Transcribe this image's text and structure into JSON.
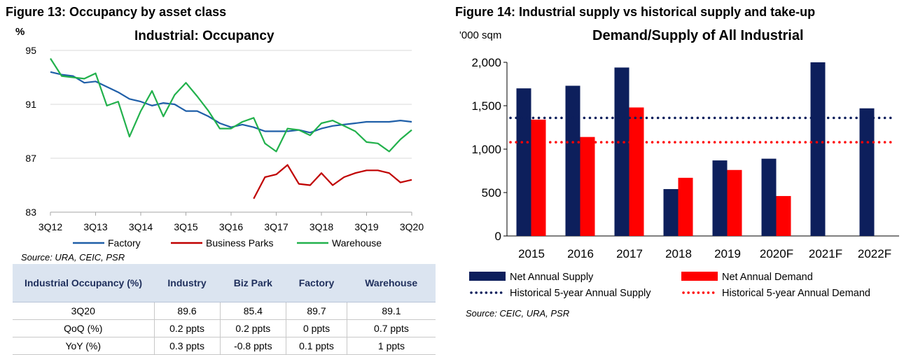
{
  "left": {
    "figure_title": "Figure 13: Occupancy by asset class",
    "unit": "%",
    "source": "Source: URA, CEIC, PSR"
  },
  "right": {
    "figure_title": "Figure 14: Industrial supply vs historical supply and take-up",
    "unit": "'000 sqm",
    "source": "Source: CEIC, URA, PSR"
  },
  "table": {
    "headers": [
      "Industrial Occupancy (%)",
      "Industry",
      "Biz Park",
      "Factory",
      "Warehouse"
    ],
    "rows": [
      [
        "3Q20",
        "89.6",
        "85.4",
        "89.7",
        "89.1"
      ],
      [
        "QoQ (%)",
        "0.2 ppts",
        "0.2 ppts",
        "0 ppts",
        "0.7 ppts"
      ],
      [
        "YoY (%)",
        "0.3 ppts",
        "-0.8 ppts",
        "0.1 ppts",
        "1 ppts"
      ]
    ]
  },
  "chart_data": [
    {
      "type": "line",
      "title": "Industrial: Occupancy",
      "xlabel": "",
      "ylabel": "%",
      "ylim": [
        83,
        95
      ],
      "yticks": [
        83,
        87,
        91,
        95
      ],
      "xtick_labels": [
        "3Q12",
        "3Q13",
        "3Q14",
        "3Q15",
        "3Q16",
        "3Q17",
        "3Q18",
        "3Q19",
        "3Q20"
      ],
      "x": [
        "3Q12",
        "4Q12",
        "1Q13",
        "2Q13",
        "3Q13",
        "4Q13",
        "1Q14",
        "2Q14",
        "3Q14",
        "4Q14",
        "1Q15",
        "2Q15",
        "3Q15",
        "4Q15",
        "1Q16",
        "2Q16",
        "3Q16",
        "4Q16",
        "1Q17",
        "2Q17",
        "3Q17",
        "4Q17",
        "1Q18",
        "2Q18",
        "3Q18",
        "4Q18",
        "1Q19",
        "2Q19",
        "3Q19",
        "4Q19",
        "1Q20",
        "2Q20",
        "3Q20"
      ],
      "series": [
        {
          "name": "Factory",
          "color": "#1f5fa8",
          "values": [
            93.4,
            93.2,
            93.1,
            92.6,
            92.7,
            92.3,
            91.9,
            91.4,
            91.2,
            90.9,
            91.1,
            91.0,
            90.5,
            90.5,
            90.1,
            89.6,
            89.3,
            89.5,
            89.3,
            89.0,
            89.0,
            89.0,
            89.1,
            88.9,
            89.2,
            89.4,
            89.5,
            89.6,
            89.7,
            89.7,
            89.7,
            89.8,
            89.7
          ]
        },
        {
          "name": "Business Parks",
          "color": "#c00000",
          "values": [
            null,
            null,
            null,
            null,
            null,
            null,
            null,
            null,
            null,
            null,
            null,
            null,
            null,
            null,
            null,
            null,
            null,
            null,
            84.0,
            85.6,
            85.8,
            86.5,
            85.1,
            85.0,
            85.9,
            85.0,
            85.6,
            85.9,
            86.1,
            86.1,
            85.9,
            85.2,
            85.4
          ]
        },
        {
          "name": "Warehouse",
          "color": "#22b14c",
          "values": [
            94.4,
            93.1,
            93.0,
            92.9,
            93.3,
            90.9,
            91.2,
            88.6,
            90.5,
            92.0,
            90.1,
            91.7,
            92.6,
            91.6,
            90.5,
            89.2,
            89.2,
            89.7,
            90.0,
            88.1,
            87.5,
            89.2,
            89.1,
            88.7,
            89.6,
            89.8,
            89.4,
            89.0,
            88.2,
            88.1,
            87.5,
            88.4,
            89.1
          ]
        }
      ],
      "legend": "bottom"
    },
    {
      "type": "bar",
      "title": "Demand/Supply of All Industrial",
      "ylabel": "'000 sqm",
      "ylim": [
        0,
        2000
      ],
      "yticks": [
        0,
        500,
        1000,
        1500,
        2000
      ],
      "categories": [
        "2015",
        "2016",
        "2017",
        "2018",
        "2019",
        "2020F",
        "2021F",
        "2022F"
      ],
      "series": [
        {
          "name": "Net Annual Supply",
          "color": "#0d1f5c",
          "values": [
            1700,
            1730,
            1940,
            540,
            870,
            890,
            2000,
            1470
          ]
        },
        {
          "name": "Net Annual Demand",
          "color": "#ff0000",
          "values": [
            1340,
            1140,
            1480,
            670,
            760,
            460,
            null,
            null
          ]
        }
      ],
      "reference_lines": [
        {
          "name": "Historical 5-year Annual Supply",
          "color": "#0d1f5c",
          "value": 1360
        },
        {
          "name": "Historical 5-year Annual Demand",
          "color": "#ff0000",
          "value": 1080
        }
      ],
      "legend": "bottom"
    }
  ]
}
